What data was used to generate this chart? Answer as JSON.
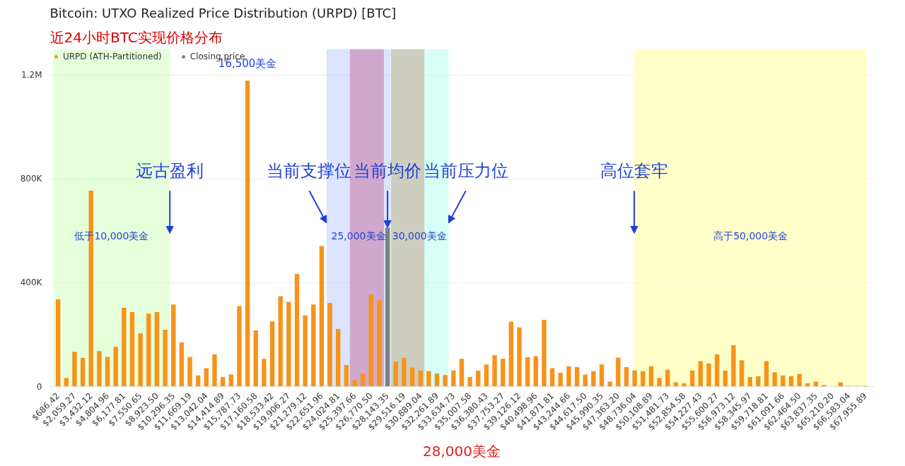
{
  "chart_data": {
    "type": "bar",
    "title": "Bitcoin: UTXO Realized Price Distribution (URPD) [BTC]",
    "subtitle": "近24小时BTC实现价格分布",
    "x": [
      686.42,
      1372.85,
      2059.27,
      2745.69,
      3432.12,
      4118.54,
      4804.96,
      5491.38,
      6177.81,
      6864.23,
      7550.65,
      8237.08,
      8923.5,
      9609.92,
      10296.35,
      10982.77,
      11669.19,
      12355.62,
      13042.04,
      13728.46,
      14414.89,
      15101.31,
      15787.73,
      16474.15,
      17160.58,
      17847.0,
      18533.42,
      19219.85,
      19906.27,
      20592.69,
      21279.12,
      21965.54,
      22651.96,
      23338.39,
      24024.81,
      24711.23,
      25397.66,
      26084.08,
      26770.5,
      27456.92,
      28143.35,
      28829.77,
      29516.19,
      30202.62,
      30889.04,
      31575.46,
      32261.89,
      32948.31,
      33634.73,
      34321.16,
      35007.58,
      35694.0,
      36380.43,
      37066.85,
      37753.27,
      38439.69,
      39126.12,
      39812.54,
      40498.96,
      41185.39,
      41871.81,
      42558.23,
      43244.66,
      43931.08,
      44617.5,
      45303.92,
      45990.35,
      46676.77,
      47363.2,
      48049.62,
      48736.04,
      49422.46,
      50108.89,
      50795.31,
      51481.73,
      52168.16,
      52854.58,
      53541.0,
      54227.43,
      54913.85,
      55600.27,
      56286.69,
      56973.12,
      57659.54,
      58345.97,
      59032.39,
      59718.81,
      60405.23,
      61091.66,
      61778.08,
      62464.5,
      63150.93,
      63837.35,
      64523.77,
      65210.2,
      65896.62,
      66583.04,
      67269.46,
      67955.89
    ],
    "series": [
      {
        "name": "URPD (ATH-Partitioned)",
        "color": "#f7931a",
        "values": [
          336000,
          33000,
          134000,
          111000,
          755000,
          137000,
          114000,
          153000,
          303000,
          287000,
          205000,
          281000,
          287000,
          219000,
          316000,
          170000,
          114000,
          43000,
          71000,
          124000,
          37000,
          46000,
          310000,
          1178000,
          216000,
          107000,
          251000,
          348000,
          326000,
          434000,
          274000,
          316000,
          541000,
          322000,
          222000,
          83000,
          25000,
          50000,
          355000,
          333000,
          null,
          96000,
          111000,
          73000,
          62000,
          60000,
          50000,
          44000,
          62000,
          107000,
          37000,
          61000,
          85000,
          121000,
          107000,
          250000,
          228000,
          113000,
          117000,
          257000,
          71000,
          53000,
          78000,
          75000,
          46000,
          59000,
          85000,
          19000,
          111000,
          75000,
          62000,
          59000,
          78000,
          33000,
          65000,
          16000,
          13000,
          62000,
          98000,
          89000,
          124000,
          62000,
          159000,
          101000,
          37000,
          40000,
          98000,
          55000,
          43000,
          40000,
          49000,
          13000,
          19000,
          6000,
          null,
          16000,
          3000,
          3000,
          3000
        ]
      },
      {
        "name": "Closing price",
        "color": "#808080",
        "x": [
          28143.35
        ],
        "values": [
          612000
        ]
      }
    ],
    "xlim": [
      0,
      68642
    ],
    "ylim": [
      0,
      1300000
    ],
    "xticks": [
      {
        "value": 686.42,
        "label": "$686.42"
      },
      {
        "value": 2059.27,
        "label": "$2,059.27"
      },
      {
        "value": 3432.12,
        "label": "$3,432.12"
      },
      {
        "value": 4804.96,
        "label": "$4,804.96"
      },
      {
        "value": 6177.81,
        "label": "$6,177.81"
      },
      {
        "value": 7550.65,
        "label": "$7,550.65"
      },
      {
        "value": 8923.5,
        "label": "$8,923.50"
      },
      {
        "value": 10296.35,
        "label": "$10,296.35"
      },
      {
        "value": 11669.19,
        "label": "$11,669.19"
      },
      {
        "value": 13042.04,
        "label": "$13,042.04"
      },
      {
        "value": 14414.89,
        "label": "$14,414.89"
      },
      {
        "value": 15787.73,
        "label": "$15,787.73"
      },
      {
        "value": 17160.58,
        "label": "$17,160.58"
      },
      {
        "value": 18533.42,
        "label": "$18,533.42"
      },
      {
        "value": 19906.27,
        "label": "$19,906.27"
      },
      {
        "value": 21279.12,
        "label": "$21,279.12"
      },
      {
        "value": 22651.96,
        "label": "$22,651.96"
      },
      {
        "value": 24024.81,
        "label": "$24,024.81"
      },
      {
        "value": 25397.66,
        "label": "$25,397.66"
      },
      {
        "value": 26770.5,
        "label": "$26,770.50"
      },
      {
        "value": 28143.35,
        "label": "$28,143.35"
      },
      {
        "value": 29516.19,
        "label": "$29,516.19"
      },
      {
        "value": 30889.04,
        "label": "$30,889.04"
      },
      {
        "value": 32261.89,
        "label": "$32,261.89"
      },
      {
        "value": 33634.73,
        "label": "$33,634.73"
      },
      {
        "value": 35007.58,
        "label": "$35,007.58"
      },
      {
        "value": 36380.43,
        "label": "$36,380.43"
      },
      {
        "value": 37753.27,
        "label": "$37,753.27"
      },
      {
        "value": 39126.12,
        "label": "$39,126.12"
      },
      {
        "value": 40498.96,
        "label": "$40,498.96"
      },
      {
        "value": 41871.81,
        "label": "$41,871.81"
      },
      {
        "value": 43244.66,
        "label": "$43,244.66"
      },
      {
        "value": 44617.5,
        "label": "$44,617.50"
      },
      {
        "value": 45990.35,
        "label": "$45,990.35"
      },
      {
        "value": 47363.2,
        "label": "$47,363.20"
      },
      {
        "value": 48736.04,
        "label": "$48,736.04"
      },
      {
        "value": 50108.89,
        "label": "$50,108.89"
      },
      {
        "value": 51481.73,
        "label": "$51,481.73"
      },
      {
        "value": 52854.58,
        "label": "$52,854.58"
      },
      {
        "value": 54227.43,
        "label": "$54,227.43"
      },
      {
        "value": 55600.27,
        "label": "$55,600.27"
      },
      {
        "value": 56973.12,
        "label": "$56,973.12"
      },
      {
        "value": 58345.97,
        "label": "$58,345.97"
      },
      {
        "value": 59718.81,
        "label": "$59,718.81"
      },
      {
        "value": 61091.66,
        "label": "$61,091.66"
      },
      {
        "value": 62464.5,
        "label": "$62,464.50"
      },
      {
        "value": 63837.35,
        "label": "$63,837.35"
      },
      {
        "value": 65210.2,
        "label": "$65,210.20"
      },
      {
        "value": 66583.04,
        "label": "$66,583.04"
      },
      {
        "value": 67955.89,
        "label": "$67,955.89"
      }
    ],
    "yticks": [
      0,
      {
        "value": 400000,
        "label": "400K"
      },
      {
        "value": 800000,
        "label": "800K"
      },
      {
        "value": 1200000,
        "label": "1.2M"
      }
    ],
    "grid": "y",
    "legend": "top left",
    "bands": [
      {
        "axis": "x",
        "from": 300,
        "to": 10000,
        "label": "低于10,000美金",
        "color": "#c8ffb0"
      },
      {
        "axis": "x",
        "from": 48700,
        "to": 68100,
        "label": "高于50,000美金",
        "color": "#ffff88"
      },
      {
        "axis": "x",
        "from": 23060,
        "to": 28380,
        "label": "25,000美金",
        "color": "#b4c4ff"
      },
      {
        "axis": "x",
        "from": 28380,
        "to": 33220,
        "label": "30,000美金",
        "color": "#a8ffe8"
      },
      {
        "axis": "x",
        "from": 25000,
        "to": 27840,
        "label": null,
        "color": "#c06090"
      },
      {
        "axis": "x",
        "from": 28430,
        "to": 31210,
        "label": null,
        "color": "#c09080"
      }
    ],
    "annotations": [
      {
        "text": "16,500美金",
        "x": 16474.15,
        "y": 1178000
      },
      {
        "text": "远古盈利",
        "x": 10000,
        "y": 590000
      },
      {
        "text": "当前支撑位",
        "x": 23060,
        "y": 630000
      },
      {
        "text": "当前均价",
        "x": 28143.35,
        "y": 612000
      },
      {
        "text": "当前压力位",
        "x": 33220,
        "y": 630000
      },
      {
        "text": "高位套牢",
        "x": 48700,
        "y": 590000
      },
      "28,000美金"
    ]
  }
}
